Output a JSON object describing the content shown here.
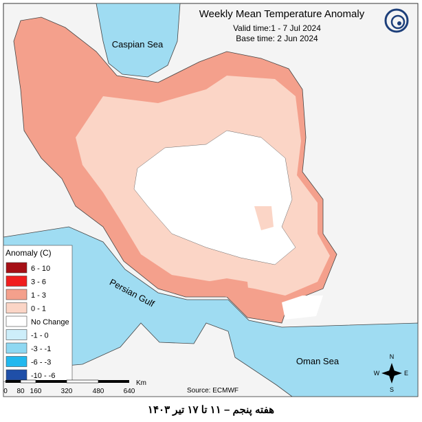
{
  "header": {
    "title": "Weekly Mean Temperature Anomaly",
    "valid_time": "Valid time:1 - 7 Jul 2024",
    "base_time": "Base time: 2 Jun 2024"
  },
  "map_labels": {
    "caspian": "Caspian Sea",
    "gulf": "Persian Gulf",
    "oman": "Oman Sea"
  },
  "legend": {
    "title": "Anomaly (C)",
    "items": [
      {
        "label": "6 - 10",
        "color": "#a50f15"
      },
      {
        "label": "3 - 6",
        "color": "#f01e1e"
      },
      {
        "label": "1 - 3",
        "color": "#f4a08c"
      },
      {
        "label": "0 - 1",
        "color": "#fbd5c6"
      },
      {
        "label": "No Change",
        "color": "#ffffff"
      },
      {
        "label": "-1 - 0",
        "color": "#cdeefa"
      },
      {
        "label": "-3 - -1",
        "color": "#8fd8f2"
      },
      {
        "label": "-6 - -3",
        "color": "#22b8ee"
      },
      {
        "label": "-10 - -6",
        "color": "#1f4fa8"
      }
    ]
  },
  "scale": {
    "labels": [
      "0",
      "80",
      "160",
      "320",
      "480",
      "640"
    ],
    "unit": "Km"
  },
  "source": "Source: ECMWF",
  "compass": {
    "n": "N",
    "s": "S",
    "e": "E",
    "w": "W"
  },
  "caption": "هفته پنجم – ۱۱ تا ۱۷ تیر ۱۴۰۳"
}
